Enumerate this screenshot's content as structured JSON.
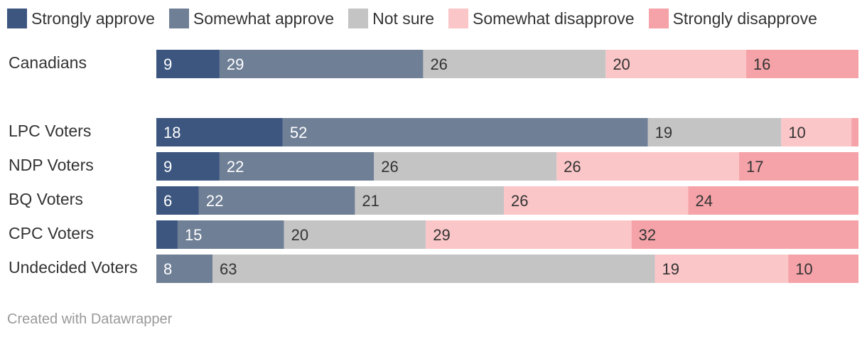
{
  "chart_data": {
    "type": "bar",
    "orientation": "horizontal",
    "stacked": true,
    "legend_position": "top-left",
    "series": [
      {
        "name": "Strongly approve",
        "color": "#3c567f"
      },
      {
        "name": "Somewhat approve",
        "color": "#6f7f96"
      },
      {
        "name": "Not sure",
        "color": "#c4c4c4"
      },
      {
        "name": "Somewhat disapprove",
        "color": "#fbc6c8"
      },
      {
        "name": "Strongly disapprove",
        "color": "#f5a3a8"
      }
    ],
    "categories": [
      "Canadians",
      "LPC Voters",
      "NDP Voters",
      "BQ Voters",
      "CPC Voters",
      "Undecided Voters"
    ],
    "values": [
      [
        9,
        29,
        26,
        20,
        16
      ],
      [
        18,
        52,
        19,
        10,
        1
      ],
      [
        9,
        22,
        26,
        26,
        17
      ],
      [
        6,
        22,
        21,
        26,
        24
      ],
      [
        3,
        15,
        20,
        29,
        32
      ],
      [
        0,
        8,
        63,
        19,
        10
      ]
    ],
    "labels": [
      [
        "9",
        "29",
        "26",
        "20",
        "16"
      ],
      [
        "18",
        "52",
        "19",
        "10",
        ""
      ],
      [
        "9",
        "22",
        "26",
        "26",
        "17"
      ],
      [
        "6",
        "22",
        "21",
        "26",
        "24"
      ],
      [
        "",
        "15",
        "20",
        "29",
        "32"
      ],
      [
        "",
        "8",
        "63",
        "19",
        "10"
      ]
    ]
  },
  "credit": "Created with Datawrapper"
}
